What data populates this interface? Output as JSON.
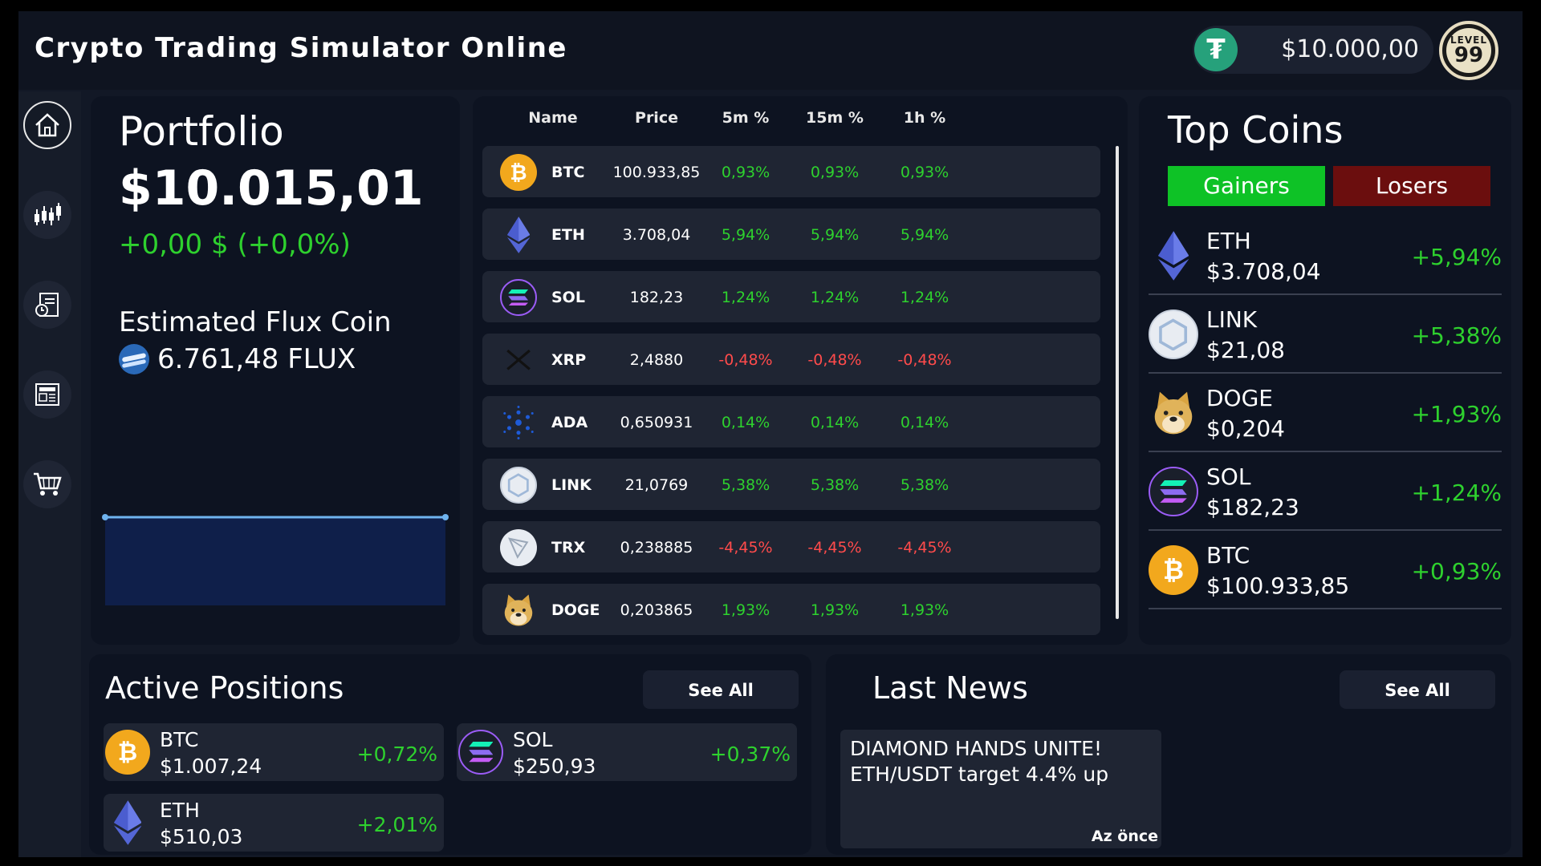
{
  "app": {
    "title": "Crypto Trading Simulator Online"
  },
  "header": {
    "balance": "$10.000,00",
    "level_label": "LEVEL",
    "level_value": "99"
  },
  "colors": {
    "positive": "#2ed12e",
    "negative": "#ff4b4b",
    "gainers_tab": "#0ec226",
    "losers_tab": "#6b0e0e"
  },
  "sidebar": {
    "items": [
      {
        "icon": "home-icon"
      },
      {
        "icon": "candlestick-chart-icon"
      },
      {
        "icon": "portfolio-document-icon"
      },
      {
        "icon": "news-icon"
      },
      {
        "icon": "shopping-cart-icon"
      }
    ]
  },
  "portfolio": {
    "title": "Portfolio",
    "value": "$10.015,01",
    "change": "+0,00 $ (+0,0%)",
    "flux_label": "Estimated Flux Coin",
    "flux_value": "6.761,48 FLUX"
  },
  "portfolio_chart": {
    "type": "line",
    "values": [
      10015.01,
      10015.01
    ]
  },
  "market": {
    "columns": [
      "Name",
      "Price",
      "5m %",
      "15m %",
      "1h %"
    ],
    "rows": [
      {
        "symbol": "BTC",
        "price": "100.933,85",
        "m5": "0,93%",
        "m15": "0,93%",
        "h1": "0,93%",
        "trend": "pos",
        "icon": "bitcoin-icon"
      },
      {
        "symbol": "ETH",
        "price": "3.708,04",
        "m5": "5,94%",
        "m15": "5,94%",
        "h1": "5,94%",
        "trend": "pos",
        "icon": "ethereum-icon"
      },
      {
        "symbol": "SOL",
        "price": "182,23",
        "m5": "1,24%",
        "m15": "1,24%",
        "h1": "1,24%",
        "trend": "pos",
        "icon": "solana-icon"
      },
      {
        "symbol": "XRP",
        "price": "2,4880",
        "m5": "-0,48%",
        "m15": "-0,48%",
        "h1": "-0,48%",
        "trend": "neg",
        "icon": "xrp-icon"
      },
      {
        "symbol": "ADA",
        "price": "0,650931",
        "m5": "0,14%",
        "m15": "0,14%",
        "h1": "0,14%",
        "trend": "pos",
        "icon": "cardano-icon"
      },
      {
        "symbol": "LINK",
        "price": "21,0769",
        "m5": "5,38%",
        "m15": "5,38%",
        "h1": "5,38%",
        "trend": "pos",
        "icon": "chainlink-icon"
      },
      {
        "symbol": "TRX",
        "price": "0,238885",
        "m5": "-4,45%",
        "m15": "-4,45%",
        "h1": "-4,45%",
        "trend": "neg",
        "icon": "tron-icon"
      },
      {
        "symbol": "DOGE",
        "price": "0,203865",
        "m5": "1,93%",
        "m15": "1,93%",
        "h1": "1,93%",
        "trend": "pos",
        "icon": "dogecoin-icon"
      }
    ]
  },
  "top_coins": {
    "title": "Top Coins",
    "tabs": {
      "gainers": "Gainers",
      "losers": "Losers"
    },
    "items": [
      {
        "symbol": "ETH",
        "price": "$3.708,04",
        "change": "+5,94%",
        "icon": "ethereum-icon"
      },
      {
        "symbol": "LINK",
        "price": "$21,08",
        "change": "+5,38%",
        "icon": "chainlink-icon"
      },
      {
        "symbol": "DOGE",
        "price": "$0,204",
        "change": "+1,93%",
        "icon": "dogecoin-icon"
      },
      {
        "symbol": "SOL",
        "price": "$182,23",
        "change": "+1,24%",
        "icon": "solana-icon"
      },
      {
        "symbol": "BTC",
        "price": "$100.933,85",
        "change": "+0,93%",
        "icon": "bitcoin-icon"
      }
    ]
  },
  "positions": {
    "title": "Active Positions",
    "see_all": "See All",
    "items": [
      {
        "symbol": "BTC",
        "value": "$1.007,24",
        "change": "+0,72%",
        "icon": "bitcoin-icon"
      },
      {
        "symbol": "SOL",
        "value": "$250,93",
        "change": "+0,37%",
        "icon": "solana-icon"
      },
      {
        "symbol": "ETH",
        "value": "$510,03",
        "change": "+2,01%",
        "icon": "ethereum-icon"
      }
    ]
  },
  "news": {
    "title": "Last News",
    "see_all": "See All",
    "items": [
      {
        "headline": "DIAMOND HANDS UNITE! ETH/USDT target 4.4% up",
        "time": "Az önce"
      }
    ]
  }
}
